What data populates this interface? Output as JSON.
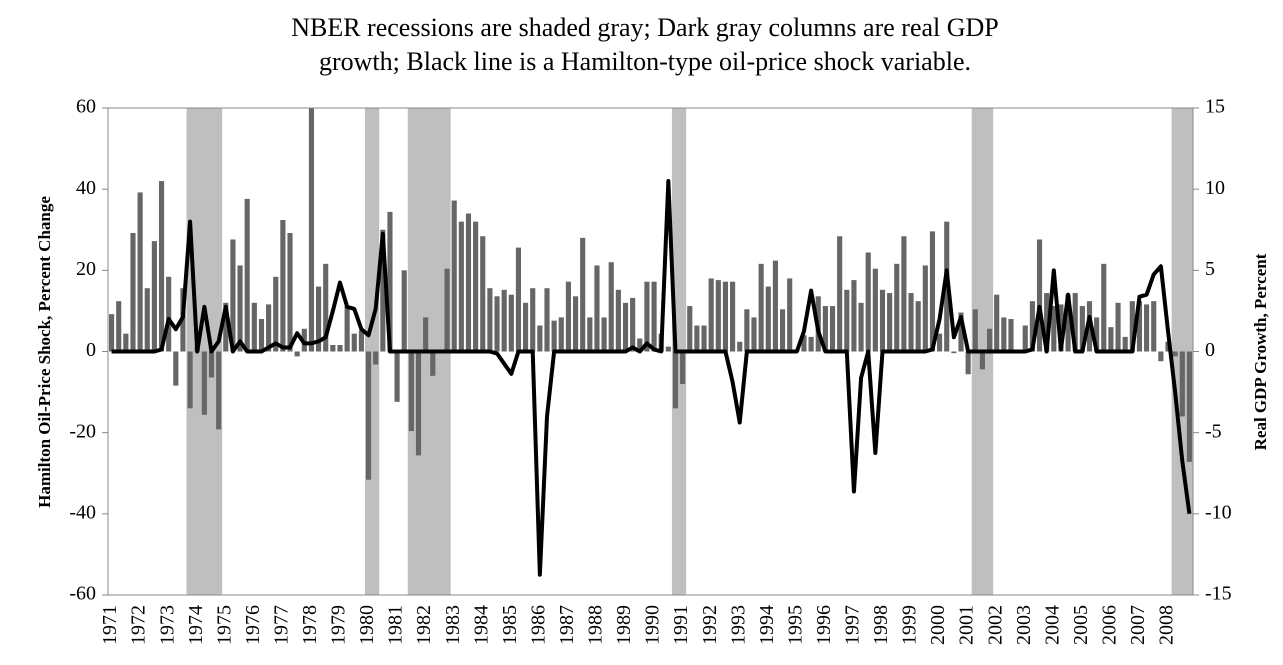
{
  "chart_data": {
    "type": "combo",
    "title": [
      "NBER recessions are shaded gray; Dark gray columns are real GDP",
      "growth; Black line is a Hamilton-type oil-price shock variable."
    ],
    "ylabel": "Hamilton Oil-Price Shock, Percent Change",
    "y2label": "Real GDP Growth, Percent",
    "categories": [
      "1971",
      null,
      null,
      null,
      "1972",
      null,
      null,
      null,
      "1973",
      null,
      null,
      null,
      "1974",
      null,
      null,
      null,
      "1975",
      null,
      null,
      null,
      "1976",
      null,
      null,
      null,
      "1977",
      null,
      null,
      null,
      "1978",
      null,
      null,
      null,
      "1979",
      null,
      null,
      null,
      "1980",
      null,
      null,
      null,
      "1981",
      null,
      null,
      null,
      "1982",
      null,
      null,
      null,
      "1983",
      null,
      null,
      null,
      "1984",
      null,
      null,
      null,
      "1985",
      null,
      null,
      null,
      "1986",
      null,
      null,
      null,
      "1987",
      null,
      null,
      null,
      "1988",
      null,
      null,
      null,
      "1989",
      null,
      null,
      null,
      "1990",
      null,
      null,
      null,
      "1991",
      null,
      null,
      null,
      "1992",
      null,
      null,
      null,
      "1993",
      null,
      null,
      null,
      "1994",
      null,
      null,
      null,
      "1995",
      null,
      null,
      null,
      "1996",
      null,
      null,
      null,
      "1997",
      null,
      null,
      null,
      "1998",
      null,
      null,
      null,
      "1999",
      null,
      null,
      null,
      "2000",
      null,
      null,
      null,
      "2001",
      null,
      null,
      null,
      "2002",
      null,
      null,
      null,
      "2003",
      null,
      null,
      null,
      "2004",
      null,
      null,
      null,
      "2005",
      null,
      null,
      null,
      "2006",
      null,
      null,
      null,
      "2007",
      null,
      null,
      null,
      "2008",
      null,
      null,
      null
    ],
    "shaded_ranges": [
      [
        11,
        15
      ],
      [
        36,
        37
      ],
      [
        42,
        47
      ],
      [
        79,
        80
      ],
      [
        121,
        123
      ],
      [
        149,
        151
      ]
    ],
    "shade_color": "#bfbfbf",
    "series": [
      {
        "type": "bar",
        "axis": "y2",
        "color": "#666666",
        "values": [
          2.3,
          3.1,
          1.1,
          7.3,
          9.8,
          3.9,
          6.8,
          10.5,
          4.6,
          -2.1,
          3.9,
          -3.5,
          0.3,
          -3.9,
          -1.6,
          -4.8,
          3,
          6.9,
          5.3,
          9.4,
          3,
          2,
          2.9,
          4.6,
          8.1,
          7.3,
          -0.3,
          1.4,
          15,
          4,
          5.4,
          0.4,
          0.4,
          2.8,
          1.1,
          1.3,
          -7.9,
          -0.8,
          7.5,
          8.6,
          -3.1,
          5,
          -4.9,
          -6.4,
          2.1,
          -1.5,
          0.1,
          5.1,
          9.3,
          8,
          8.5,
          8,
          7.1,
          3.9,
          3.4,
          3.8,
          3.5,
          6.4,
          3,
          3.9,
          1.6,
          3.9,
          1.9,
          2.1,
          4.3,
          3.4,
          7,
          2.1,
          5.3,
          2.1,
          5.5,
          3.8,
          3,
          3.3,
          0.8,
          4.3,
          4.3,
          1.1,
          0.3,
          -3.5,
          -2,
          2.8,
          1.6,
          1.6,
          4.5,
          4.4,
          4.3,
          4.3,
          0.6,
          2.6,
          2.1,
          5.4,
          4,
          5.6,
          2.6,
          4.5,
          0.1,
          1,
          0.9,
          3.4,
          2.8,
          2.8,
          7.1,
          3.8,
          4.4,
          3,
          6.1,
          5.1,
          3.8,
          3.6,
          5.4,
          7.1,
          3.6,
          3.1,
          5.3,
          7.4,
          1.1,
          8,
          -0.1,
          2.4,
          -1.4,
          2.6,
          -1.1,
          1.4,
          3.5,
          2.1,
          2,
          0.1,
          1.6,
          3.1,
          6.9,
          3.6,
          2.8,
          2.9,
          3.5,
          3.6,
          2.8,
          3.1,
          2.1,
          5.4,
          1.5,
          3,
          0.9,
          3.1,
          3.1,
          2.9,
          3.1,
          -0.6,
          0.6,
          -0.3,
          -4,
          -6.8
        ]
      },
      {
        "type": "line",
        "color": "#000000",
        "values": [
          0,
          0,
          0,
          0,
          0,
          0,
          0,
          0.5,
          8,
          5.5,
          8.5,
          32,
          0,
          11,
          0,
          2.5,
          11,
          0,
          2.5,
          0,
          0,
          0,
          1,
          2,
          1,
          1,
          4.5,
          2,
          2,
          2.5,
          3.5,
          10,
          17,
          11,
          10.5,
          5.5,
          4,
          10.5,
          29,
          0,
          0,
          0,
          0,
          0,
          0,
          0,
          0,
          0,
          0,
          0,
          0,
          0,
          0,
          0,
          -0.5,
          -3,
          -5.5,
          0,
          0,
          0,
          -55,
          -16,
          0,
          0,
          0,
          0,
          0,
          0,
          0,
          0,
          0,
          0,
          0,
          1,
          0,
          2,
          0.5,
          0,
          42,
          0,
          0,
          0,
          0,
          0,
          0,
          0,
          0,
          -7.5,
          -17.5,
          0,
          0,
          0,
          0,
          0,
          0,
          0,
          0,
          5,
          15,
          5,
          0,
          0,
          0,
          0,
          -34.5,
          -6.5,
          0,
          -25,
          0,
          0,
          0,
          0,
          0,
          0,
          0,
          0.5,
          8,
          20,
          3.5,
          8.5,
          0,
          0,
          0,
          0,
          0,
          0,
          0,
          0,
          0,
          0.5,
          11,
          0,
          20,
          0.5,
          14,
          0,
          0,
          8.5,
          0,
          0,
          0,
          0,
          0,
          0,
          13.5,
          14,
          19,
          21,
          5,
          -10,
          -27,
          -40
        ]
      }
    ],
    "ylim": [
      -60,
      60
    ],
    "yticks": [
      -60,
      -40,
      -20,
      0,
      20,
      40,
      60
    ],
    "y2lim": [
      -15,
      15
    ],
    "y2ticks": [
      -15,
      -10,
      -5,
      0,
      5,
      10,
      15
    ],
    "grid": false
  }
}
